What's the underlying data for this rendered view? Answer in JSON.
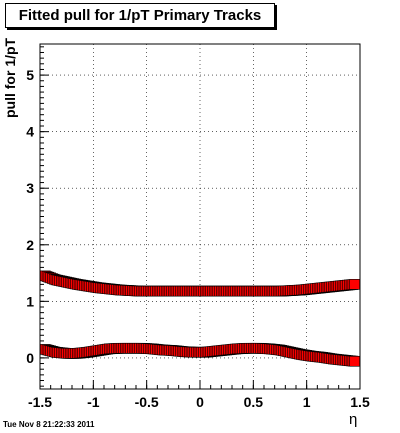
{
  "chart_data": {
    "type": "scatter",
    "title": "Fitted pull for 1/pT  Primary Tracks",
    "xlabel": "η",
    "ylabel": "pull for 1/pT",
    "xlim": [
      -1.5,
      1.5
    ],
    "ylim": [
      -0.55,
      5.55
    ],
    "grid": true,
    "x_ticks": [
      "-1.5",
      "-1",
      "-0.5",
      "0",
      "0.5",
      "1",
      "1.5"
    ],
    "y_ticks": [
      "0",
      "1",
      "2",
      "3",
      "4",
      "5"
    ],
    "series": [
      {
        "color": "#ff0000",
        "marker_edge": "#000000",
        "x": [
          -1.45,
          -1.35,
          -1.25,
          -1.15,
          -1.05,
          -0.95,
          -0.85,
          -0.75,
          -0.65,
          -0.55,
          -0.45,
          -0.35,
          -0.25,
          -0.15,
          -0.05,
          0.05,
          0.15,
          0.25,
          0.35,
          0.45,
          0.55,
          0.65,
          0.75,
          0.85,
          0.95,
          1.05,
          1.15,
          1.25,
          1.35,
          1.45
        ],
        "values": [
          1.45,
          1.38,
          1.34,
          1.3,
          1.27,
          1.24,
          1.22,
          1.2,
          1.19,
          1.18,
          1.18,
          1.18,
          1.18,
          1.18,
          1.18,
          1.18,
          1.18,
          1.18,
          1.18,
          1.18,
          1.18,
          1.18,
          1.18,
          1.19,
          1.2,
          1.22,
          1.24,
          1.26,
          1.28,
          1.3
        ]
      },
      {
        "color": "#ff0000",
        "marker_edge": "#000000",
        "x": [
          -1.45,
          -1.35,
          -1.25,
          -1.15,
          -1.05,
          -0.95,
          -0.85,
          -0.75,
          -0.65,
          -0.55,
          -0.45,
          -0.35,
          -0.25,
          -0.15,
          -0.05,
          0.05,
          0.15,
          0.25,
          0.35,
          0.45,
          0.55,
          0.65,
          0.75,
          0.85,
          0.95,
          1.05,
          1.15,
          1.25,
          1.35,
          1.45
        ],
        "values": [
          0.15,
          0.1,
          0.08,
          0.08,
          0.1,
          0.13,
          0.16,
          0.17,
          0.17,
          0.17,
          0.16,
          0.14,
          0.13,
          0.11,
          0.1,
          0.1,
          0.12,
          0.14,
          0.16,
          0.17,
          0.17,
          0.16,
          0.14,
          0.1,
          0.06,
          0.03,
          0.01,
          -0.02,
          -0.04,
          -0.06
        ]
      }
    ]
  },
  "footer": {
    "timestamp": "Tue Nov  8 21:22:33 2011"
  }
}
